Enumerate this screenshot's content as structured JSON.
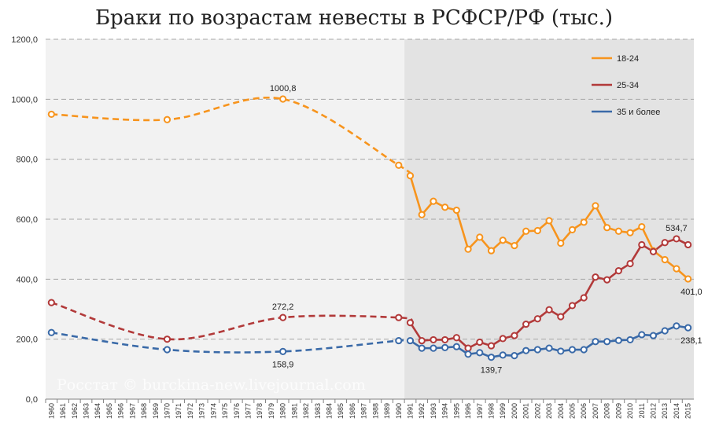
{
  "chart_data": {
    "type": "line",
    "title": "Браки по возрастам невесты в РСФСР/РФ (тыс.)",
    "ylim": [
      0,
      1200
    ],
    "y_ticks": [
      "0,0",
      "200,0",
      "400,0",
      "600,0",
      "800,0",
      "1000,0",
      "1200,0"
    ],
    "x_ticks": [
      "1960",
      "1961",
      "1962",
      "1963",
      "1964",
      "1965",
      "1966",
      "1967",
      "1968",
      "1969",
      "1970",
      "1971",
      "1972",
      "1973",
      "1974",
      "1975",
      "1976",
      "1977",
      "1978",
      "1979",
      "1980",
      "1981",
      "1982",
      "1983",
      "1984",
      "1985",
      "1986",
      "1987",
      "1988",
      "1989",
      "1990",
      "1991",
      "1992",
      "1993",
      "1994",
      "1995",
      "1996",
      "1997",
      "1998",
      "1999",
      "2000",
      "2001",
      "2002",
      "2003",
      "2004",
      "2005",
      "2006",
      "2007",
      "2008",
      "2009",
      "2010",
      "2011",
      "2012",
      "2013",
      "2014",
      "2015"
    ],
    "grid": true,
    "legend_position": "top-right",
    "shaded_region_from": 1991,
    "watermark": "Росстат © burckina-new.livejournal.com",
    "series": [
      {
        "name": "18-24",
        "color": "#f7941d",
        "sparse_years": [
          1960,
          1970,
          1980,
          1990
        ],
        "sparse_values": [
          950,
          932,
          1000.8,
          780
        ],
        "x": [
          1991,
          1992,
          1993,
          1994,
          1995,
          1996,
          1997,
          1998,
          1999,
          2000,
          2001,
          2002,
          2003,
          2004,
          2005,
          2006,
          2007,
          2008,
          2009,
          2010,
          2011,
          2012,
          2013,
          2014,
          2015
        ],
        "values": [
          745,
          615,
          660,
          640,
          630,
          500,
          540,
          495,
          530,
          512,
          560,
          562,
          595,
          520,
          565,
          590,
          645,
          572,
          560,
          555,
          575,
          495,
          465,
          435,
          401
        ]
      },
      {
        "name": "25-34",
        "color": "#b23a3a",
        "sparse_years": [
          1960,
          1970,
          1980,
          1990
        ],
        "sparse_values": [
          322,
          200,
          272.2,
          272
        ],
        "x": [
          1991,
          1992,
          1993,
          1994,
          1995,
          1996,
          1997,
          1998,
          1999,
          2000,
          2001,
          2002,
          2003,
          2004,
          2005,
          2006,
          2007,
          2008,
          2009,
          2010,
          2011,
          2012,
          2013,
          2014,
          2015
        ],
        "values": [
          255,
          195,
          198,
          198,
          205,
          170,
          190,
          178,
          202,
          212,
          250,
          268,
          298,
          275,
          312,
          338,
          407,
          398,
          428,
          452,
          515,
          492,
          522,
          534.7,
          515
        ]
      },
      {
        "name": "35 и более",
        "color": "#3a6aa8",
        "sparse_years": [
          1960,
          1970,
          1980,
          1990
        ],
        "sparse_values": [
          222,
          165,
          158.9,
          195
        ],
        "x": [
          1991,
          1992,
          1993,
          1994,
          1995,
          1996,
          1997,
          1998,
          1999,
          2000,
          2001,
          2002,
          2003,
          2004,
          2005,
          2006,
          2007,
          2008,
          2009,
          2010,
          2011,
          2012,
          2013,
          2014,
          2015
        ],
        "values": [
          195,
          170,
          170,
          172,
          175,
          150,
          155,
          139.7,
          147,
          145,
          162,
          165,
          170,
          160,
          165,
          165,
          192,
          192,
          196,
          198,
          215,
          212,
          228,
          244,
          238.1
        ]
      }
    ],
    "annotations": [
      {
        "text": "1000,8",
        "year": 1980,
        "value": 1000.8,
        "pos": "above"
      },
      {
        "text": "272,2",
        "year": 1980,
        "value": 272.2,
        "pos": "above"
      },
      {
        "text": "158,9",
        "year": 1980,
        "value": 158.9,
        "pos": "below"
      },
      {
        "text": "139,7",
        "year": 1998,
        "value": 139.7,
        "pos": "below"
      },
      {
        "text": "534,7",
        "year": 2014,
        "value": 534.7,
        "pos": "above"
      },
      {
        "text": "401,0",
        "year": 2015,
        "value": 401.0,
        "pos": "below"
      },
      {
        "text": "238,1",
        "year": 2015,
        "value": 238.1,
        "pos": "below"
      }
    ]
  }
}
